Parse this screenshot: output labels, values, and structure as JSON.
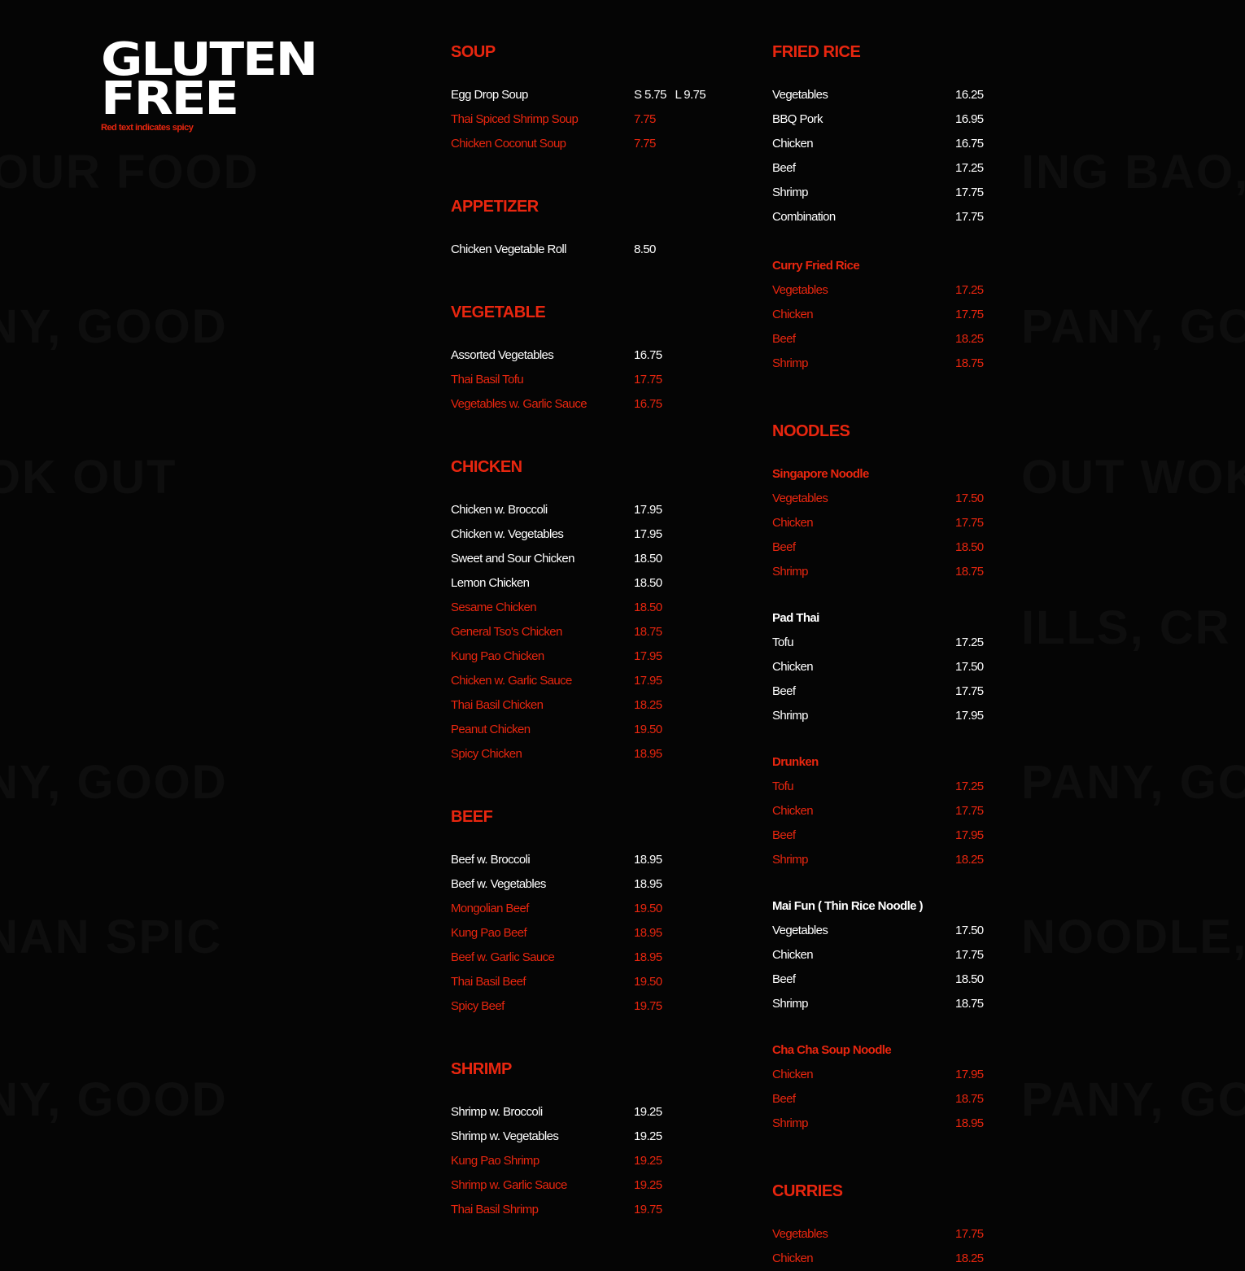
{
  "header": {
    "title_line1": "GLUTEN",
    "title_line2": "FREE",
    "note": "Red text indicates spicy"
  },
  "colors": {
    "background": "#050505",
    "accent": "#e8260f",
    "text": "#ffffff"
  },
  "columns": [
    {
      "blocks": [
        {
          "title": "SOUP",
          "items": [
            {
              "name": "Egg Drop Soup",
              "price": "S 5.75   L 9.75",
              "spicy": false
            },
            {
              "name": "Thai Spiced Shrimp Soup",
              "price": "7.75",
              "spicy": true
            },
            {
              "name": "Chicken Coconut Soup",
              "price": "7.75",
              "spicy": true
            }
          ]
        },
        {
          "title": "APPETIZER",
          "items": [
            {
              "name": "Chicken Vegetable Roll",
              "price": "8.50",
              "spicy": false
            }
          ]
        },
        {
          "title": "VEGETABLE",
          "items": [
            {
              "name": "Assorted Vegetables",
              "price": "16.75",
              "spicy": false
            },
            {
              "name": "Thai Basil Tofu",
              "price": "17.75",
              "spicy": true
            },
            {
              "name": "Vegetables w. Garlic Sauce",
              "price": "16.75",
              "spicy": true
            }
          ]
        },
        {
          "title": "CHICKEN",
          "items": [
            {
              "name": "Chicken w. Broccoli",
              "price": "17.95",
              "spicy": false
            },
            {
              "name": "Chicken w. Vegetables",
              "price": "17.95",
              "spicy": false
            },
            {
              "name": "Sweet and Sour Chicken",
              "price": "18.50",
              "spicy": false
            },
            {
              "name": "Lemon Chicken",
              "price": "18.50",
              "spicy": false
            },
            {
              "name": "Sesame Chicken",
              "price": "18.50",
              "spicy": true
            },
            {
              "name": "General Tso's Chicken",
              "price": "18.75",
              "spicy": true
            },
            {
              "name": "Kung Pao Chicken",
              "price": "17.95",
              "spicy": true
            },
            {
              "name": "Chicken w. Garlic Sauce",
              "price": "17.95",
              "spicy": true
            },
            {
              "name": "Thai Basil Chicken",
              "price": "18.25",
              "spicy": true
            },
            {
              "name": "Peanut Chicken",
              "price": "19.50",
              "spicy": true
            },
            {
              "name": "Spicy Chicken",
              "price": "18.95",
              "spicy": true
            }
          ]
        },
        {
          "title": "BEEF",
          "items": [
            {
              "name": "Beef w. Broccoli",
              "price": "18.95",
              "spicy": false
            },
            {
              "name": "Beef w. Vegetables",
              "price": "18.95",
              "spicy": false
            },
            {
              "name": "Mongolian Beef",
              "price": "19.50",
              "spicy": true
            },
            {
              "name": "Kung Pao Beef",
              "price": "18.95",
              "spicy": true
            },
            {
              "name": "Beef w. Garlic Sauce",
              "price": "18.95",
              "spicy": true
            },
            {
              "name": "Thai Basil Beef",
              "price": "19.50",
              "spicy": true
            },
            {
              "name": "Spicy Beef",
              "price": "19.75",
              "spicy": true
            }
          ]
        },
        {
          "title": "SHRIMP",
          "items": [
            {
              "name": "Shrimp w. Broccoli",
              "price": "19.25",
              "spicy": false
            },
            {
              "name": "Shrimp w. Vegetables",
              "price": "19.25",
              "spicy": false
            },
            {
              "name": "Kung Pao Shrimp",
              "price": "19.25",
              "spicy": true
            },
            {
              "name": "Shrimp w. Garlic Sauce",
              "price": "19.25",
              "spicy": true
            },
            {
              "name": "Thai Basil Shrimp",
              "price": "19.75",
              "spicy": true
            }
          ]
        }
      ]
    },
    {
      "blocks": [
        {
          "title": "FRIED RICE",
          "items": [
            {
              "name": "Vegetables",
              "price": "16.25",
              "spicy": false
            },
            {
              "name": "BBQ Pork",
              "price": "16.95",
              "spicy": false
            },
            {
              "name": "Chicken",
              "price": "16.75",
              "spicy": false
            },
            {
              "name": "Beef",
              "price": "17.25",
              "spicy": false
            },
            {
              "name": "Shrimp",
              "price": "17.75",
              "spicy": false
            },
            {
              "name": "Combination",
              "price": "17.75",
              "spicy": false
            }
          ],
          "subsections": [
            {
              "title": "Curry Fried Rice",
              "spicy": true,
              "items": [
                {
                  "name": "Vegetables",
                  "price": "17.25",
                  "spicy": true
                },
                {
                  "name": "Chicken",
                  "price": "17.75",
                  "spicy": true
                },
                {
                  "name": "Beef",
                  "price": "18.25",
                  "spicy": true
                },
                {
                  "name": "Shrimp",
                  "price": "18.75",
                  "spicy": true
                }
              ]
            }
          ]
        },
        {
          "title": "NOODLES",
          "items": [],
          "subsections": [
            {
              "title": "Singapore Noodle",
              "spicy": true,
              "items": [
                {
                  "name": "Vegetables",
                  "price": "17.50",
                  "spicy": true
                },
                {
                  "name": "Chicken",
                  "price": "17.75",
                  "spicy": true
                },
                {
                  "name": "Beef",
                  "price": "18.50",
                  "spicy": true
                },
                {
                  "name": "Shrimp",
                  "price": "18.75",
                  "spicy": true
                }
              ]
            },
            {
              "title": "Pad Thai",
              "spicy": false,
              "items": [
                {
                  "name": "Tofu",
                  "price": "17.25",
                  "spicy": false
                },
                {
                  "name": "Chicken",
                  "price": "17.50",
                  "spicy": false
                },
                {
                  "name": "Beef",
                  "price": "17.75",
                  "spicy": false
                },
                {
                  "name": "Shrimp",
                  "price": "17.95",
                  "spicy": false
                }
              ]
            },
            {
              "title": "Drunken",
              "spicy": true,
              "items": [
                {
                  "name": "Tofu",
                  "price": "17.25",
                  "spicy": true
                },
                {
                  "name": "Chicken",
                  "price": "17.75",
                  "spicy": true
                },
                {
                  "name": "Beef",
                  "price": "17.95",
                  "spicy": true
                },
                {
                  "name": "Shrimp",
                  "price": "18.25",
                  "spicy": true
                }
              ]
            },
            {
              "title": "Mai Fun ( Thin Rice Noodle )",
              "spicy": false,
              "items": [
                {
                  "name": "Vegetables",
                  "price": "17.50",
                  "spicy": false
                },
                {
                  "name": "Chicken",
                  "price": "17.75",
                  "spicy": false
                },
                {
                  "name": "Beef",
                  "price": "18.50",
                  "spicy": false
                },
                {
                  "name": "Shrimp",
                  "price": "18.75",
                  "spicy": false
                }
              ]
            },
            {
              "title": "Cha Cha Soup Noodle",
              "spicy": true,
              "items": [
                {
                  "name": "Chicken",
                  "price": "17.95",
                  "spicy": true
                },
                {
                  "name": "Beef",
                  "price": "18.75",
                  "spicy": true
                },
                {
                  "name": "Shrimp",
                  "price": "18.95",
                  "spicy": true
                }
              ]
            }
          ]
        },
        {
          "title": "CURRIES",
          "items": [
            {
              "name": "Vegetables",
              "price": "17.75",
              "spicy": true
            },
            {
              "name": "Chicken",
              "price": "18.25",
              "spicy": true
            }
          ]
        }
      ]
    }
  ]
}
